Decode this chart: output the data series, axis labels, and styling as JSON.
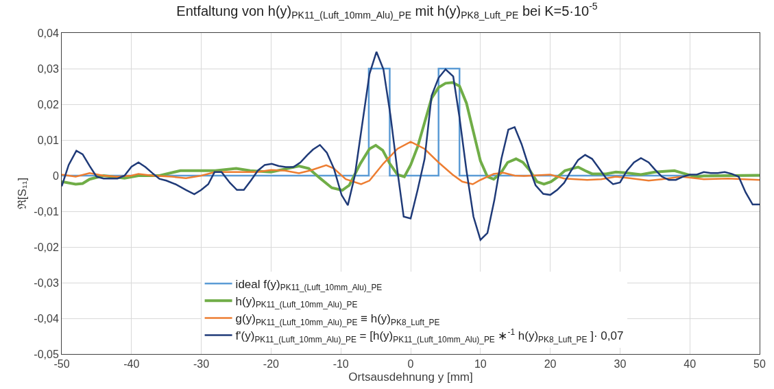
{
  "chart_data": {
    "type": "line",
    "title": "Entfaltung von h(y)$_{PK11_(Luft_10mm_Alu)_PE}$ mit h(y)$_{PK8_Luft_PE}$ bei K=5·10$^{-5}$",
    "xlabel": "Ortsausdehnung y [mm]",
    "ylabel": "ℜ[S₁₁]",
    "xlim": [
      -50,
      50
    ],
    "xticks": [
      -50,
      -40,
      -30,
      -20,
      -10,
      0,
      10,
      20,
      30,
      40,
      50
    ],
    "ylim": [
      -0.05,
      0.04
    ],
    "yticks": [
      {
        "value": -0.05,
        "label": "-0,05"
      },
      {
        "value": -0.04,
        "label": "-0,04"
      },
      {
        "value": -0.03,
        "label": "-0,03"
      },
      {
        "value": -0.02,
        "label": "-0,02"
      },
      {
        "value": -0.01,
        "label": "-0,01"
      },
      0,
      {
        "value": 0.01,
        "label": "0,01"
      },
      {
        "value": 0.02,
        "label": "0,02"
      },
      {
        "value": 0.03,
        "label": "0,03"
      },
      {
        "value": 0.04,
        "label": "0,04"
      }
    ],
    "grid": true,
    "legend": "bottom",
    "marker": "none",
    "line_style": "solid",
    "series": [
      {
        "name": "ideal f(y)$_{PK11_(Luft_10mm_Alu)_PE}$",
        "color": "#5b9bd5",
        "x": [
          -50,
          -6,
          -6,
          -3,
          -3,
          4,
          4,
          7,
          7,
          50
        ],
        "values": [
          0,
          0,
          0.03,
          0.03,
          0,
          0,
          0.03,
          0.03,
          0,
          0
        ]
      },
      {
        "name": "h(y)$_{PK11_(Luft_10mm_Alu)_PE}$",
        "color": "#70ad47",
        "x": [
          -50,
          -48,
          -47,
          -46,
          -44,
          -41,
          -39,
          -36,
          -33,
          -30,
          -28,
          -25,
          -23,
          -20,
          -16,
          -14.6,
          -13,
          -11.3,
          -9.8,
          -8.8,
          -7.2,
          -5.9,
          -5,
          -4,
          -3,
          -1.9,
          -0.9,
          0,
          1,
          2,
          3,
          4,
          5,
          6,
          7,
          8,
          9,
          10,
          11,
          11.9,
          12.9,
          13.9,
          15.1,
          16.1,
          17.1,
          18.1,
          19.1,
          20.1,
          21.1,
          22.1,
          23.2,
          24,
          25,
          26,
          28,
          29.4,
          30.7,
          33,
          35,
          37.8,
          39,
          40.8,
          42,
          45.5,
          50
        ],
        "values": [
          -0.0017,
          -0.0024,
          -0.0022,
          -0.001,
          0,
          -0.0007,
          0,
          0,
          0.0014,
          0.0014,
          0.0014,
          0.002,
          0.0014,
          0.001,
          0.0027,
          0.002,
          -0.0007,
          -0.0034,
          -0.0041,
          -0.0027,
          0.0034,
          0.0075,
          0.0085,
          0.0071,
          0.0034,
          0.0003,
          -0.0003,
          0.003,
          0.0081,
          0.0149,
          0.0217,
          0.0247,
          0.0259,
          0.0261,
          0.0251,
          0.0203,
          0.0122,
          0.0041,
          -0.0003,
          -0.001,
          0.0007,
          0.0037,
          0.0047,
          0.0037,
          0.0014,
          -0.0017,
          -0.0024,
          -0.0017,
          -0.0003,
          0.0014,
          0.002,
          0.0024,
          0.0014,
          0.0005,
          0.0005,
          0.001,
          0.0008,
          0.0003,
          0.001,
          0.0014,
          0.0007,
          -0.0003,
          -0.0001,
          0,
          0.0001
        ]
      },
      {
        "name": "g(y)$_{PK11_(Luft_10mm_Alu)_PE}$ ≡ h(y)$_{PK8_Luft_PE}$",
        "color": "#ed7d31",
        "x": [
          -50,
          -48,
          -46,
          -44,
          -42,
          -40,
          -39,
          -37,
          -34.2,
          -32.2,
          -30,
          -28,
          -26,
          -24,
          -22,
          -20,
          -18,
          -16,
          -14.3,
          -12.1,
          -11,
          -9.3,
          -7.1,
          -5.9,
          -3.9,
          -1.9,
          0,
          2,
          4,
          6,
          7.4,
          8.9,
          10,
          11.9,
          13.3,
          14.9,
          16.3,
          20,
          22,
          25.3,
          27.3,
          29.4,
          31.4,
          34.1,
          36,
          38.8,
          42,
          45.5,
          50
        ],
        "values": [
          0.0003,
          -0.0003,
          0.0007,
          0,
          -0.0003,
          0,
          0.0005,
          0,
          -0.0003,
          -0.0007,
          0,
          0.001,
          0.001,
          0.001,
          0.001,
          0.0016,
          0.0014,
          0.0007,
          0.0015,
          0.0029,
          0.002,
          -0.001,
          -0.0024,
          -0.0014,
          0.0034,
          0.0075,
          0.0095,
          0.0075,
          0.0037,
          0.0003,
          -0.0017,
          -0.0024,
          -0.0012,
          0.0005,
          0.0008,
          0,
          -0.0001,
          0.0003,
          -0.0008,
          -0.0012,
          -0.001,
          -0.0003,
          -0.0007,
          -0.0014,
          -0.001,
          -0.0003,
          -0.001,
          -0.0008,
          -0.0012
        ]
      },
      {
        "name": "f'(y)$_{PK11_(Luft_10mm_Alu)_PE}$ = [h(y)$_{PK11_(Luft_10mm_Alu)_PE}$ ∗$^{-1}$ h(y)$_{PK8_Luft_PE}$ ]· 0,07",
        "color": "#1f3a78",
        "x": [
          -50,
          -49,
          -47.9,
          -47,
          -46,
          -45,
          -44,
          -42,
          -41,
          -40,
          -39,
          -38,
          -37,
          -36,
          -35,
          -33.7,
          -32.2,
          -31,
          -30,
          -29,
          -28.1,
          -27.1,
          -25.9,
          -24.9,
          -23.9,
          -22.9,
          -21.9,
          -20.9,
          -19.9,
          -18.9,
          -17.9,
          -16.8,
          -15.8,
          -14.8,
          -14,
          -13,
          -12,
          -11,
          -9.9,
          -9,
          -8,
          -7,
          -5.9,
          -4.9,
          -3.9,
          -2.9,
          -1.9,
          -1,
          0,
          1,
          2,
          3,
          4,
          5,
          6.1,
          7,
          8,
          9,
          10,
          11,
          12,
          13,
          14,
          14.9,
          15.9,
          16.9,
          17.9,
          19,
          20,
          21,
          22,
          23,
          24,
          25,
          26,
          27,
          28,
          29,
          30,
          31,
          32,
          33,
          34.1,
          35,
          36,
          37,
          38,
          39,
          40,
          41,
          42,
          43,
          44,
          45,
          46,
          47,
          48,
          49,
          50
        ],
        "values": [
          -0.003,
          0.003,
          0.007,
          0.006,
          0.0027,
          -0.0003,
          -0.0008,
          -0.0008,
          0,
          0.0025,
          0.0037,
          0.0024,
          0.0007,
          -0.0009,
          -0.0014,
          -0.0024,
          -0.004,
          -0.0052,
          -0.004,
          -0.0024,
          0.001,
          0.001,
          -0.002,
          -0.004,
          -0.004,
          -0.0014,
          0.0014,
          0.003,
          0.0033,
          0.0027,
          0.0024,
          0.0024,
          0.0037,
          0.0058,
          0.0073,
          0.0086,
          0.0064,
          0.002,
          -0.0054,
          -0.0083,
          0,
          0.0136,
          0.0285,
          0.0347,
          0.0298,
          0.017,
          0.0014,
          -0.0115,
          -0.012,
          -0.004,
          0.0047,
          0.0224,
          0.0274,
          0.0298,
          0.0278,
          0.0163,
          0.0014,
          -0.0115,
          -0.018,
          -0.0161,
          -0.0068,
          0.0047,
          0.0129,
          0.0136,
          0.0088,
          0.0027,
          -0.0027,
          -0.0051,
          -0.0054,
          -0.004,
          -0.002,
          0.0014,
          0.0044,
          0.0058,
          0.0047,
          0.002,
          -0.0007,
          -0.0024,
          -0.0019,
          0.0014,
          0.0037,
          0.0049,
          0.0037,
          0.0017,
          -0.0003,
          -0.0012,
          -0.0012,
          -0.0003,
          0.0003,
          0.0003,
          0.001,
          0.0007,
          0.0007,
          0.001,
          0.0005,
          -0.0003,
          -0.0047,
          -0.0081,
          -0.0081
        ]
      }
    ]
  }
}
